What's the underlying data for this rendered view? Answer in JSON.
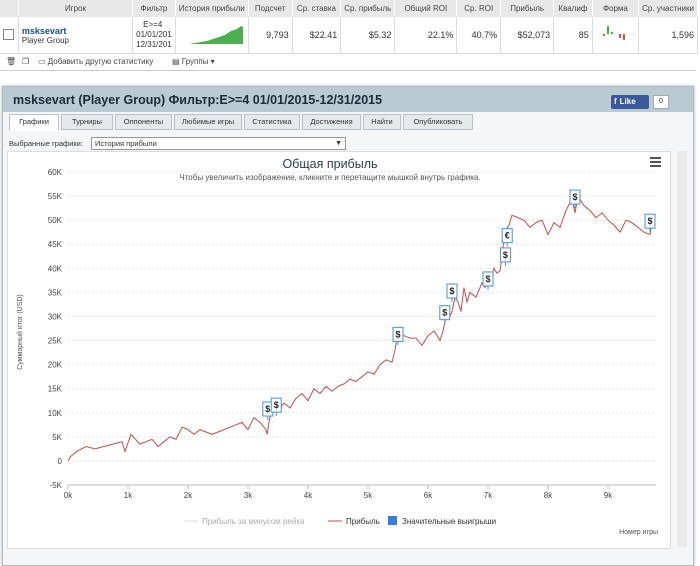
{
  "table": {
    "headers": [
      "Игрок",
      "Фильтр",
      "История прибыли",
      "Подсчет",
      "Ср. ставка",
      "Ср. прибыль",
      "Общий ROI",
      "Ср. ROI",
      "Прибыль",
      "Квалиф",
      "Форма",
      "Ср. участники"
    ],
    "row": {
      "name": "msksevart",
      "group": "Player Group",
      "filter_line1": "E>=4",
      "filter_line2": "01/01/201",
      "filter_line3": "12/31/201",
      "count": "9,793",
      "avg_stake": "$22.41",
      "avg_profit": "$5.32",
      "total_roi": "22.1%",
      "avg_roi": "40.7%",
      "profit": "$52,073",
      "qualif": "85",
      "avg_entrants": "1,596"
    }
  },
  "toolbar": {
    "add_stats": "Добавить другую статистику",
    "groups": "Группы"
  },
  "panel": {
    "title": "msksevart (Player Group) Фильтр:E>=4 01/01/2015-12/31/2015",
    "fb_like": "Like",
    "fb_count": "0",
    "tabs": [
      "Графики",
      "Турниры",
      "Оппоненты",
      "Любимые игры",
      "Статистика",
      "Достижения",
      "Найти",
      "Опубликовать"
    ],
    "select_label": "Выбранные графики:",
    "select_value": "История прибыли"
  },
  "chart_data": {
    "type": "line",
    "title": "Общая прибыль",
    "subtitle": "Чтобы увеличить изображение, кликните и перетащите мышкой внутрь графика.",
    "xlabel": "Номер игры",
    "ylabel": "Суммарный итог (USD)",
    "xlim": [
      0,
      9800
    ],
    "ylim": [
      -5000,
      60000
    ],
    "x_ticks": [
      "0k",
      "1k",
      "2k",
      "3k",
      "4k",
      "5k",
      "6k",
      "7k",
      "8k",
      "9k"
    ],
    "y_ticks": [
      "-5K",
      "0",
      "5K",
      "10K",
      "15K",
      "20K",
      "25K",
      "30K",
      "35K",
      "40K",
      "45K",
      "50K",
      "55K",
      "60K"
    ],
    "legend": [
      "Прибыль за минусом рейка",
      "Прибыль",
      "Значительные выигрыши"
    ],
    "legend_position": "bottom",
    "series_color": "#c0504d",
    "marker_color": "#4a90d9",
    "profit_series": {
      "x": [
        0,
        50,
        150,
        300,
        450,
        600,
        750,
        900,
        950,
        1050,
        1200,
        1400,
        1500,
        1600,
        1700,
        1800,
        1900,
        2000,
        2100,
        2200,
        2300,
        2400,
        2500,
        2600,
        2700,
        2800,
        2900,
        3000,
        3100,
        3200,
        3300,
        3320,
        3350,
        3400,
        3500,
        3600,
        3700,
        3800,
        3900,
        4000,
        4100,
        4200,
        4300,
        4400,
        4500,
        4600,
        4700,
        4800,
        4900,
        5000,
        5100,
        5200,
        5300,
        5400,
        5450,
        5500,
        5550,
        5600,
        5700,
        5800,
        5900,
        6000,
        6100,
        6200,
        6250,
        6300,
        6350,
        6400,
        6450,
        6500,
        6550,
        6600,
        6650,
        6700,
        6800,
        6900,
        6950,
        7000,
        7050,
        7100,
        7150,
        7200,
        7230,
        7250,
        7280,
        7300,
        7350,
        7400,
        7500,
        7600,
        7700,
        7800,
        7900,
        8000,
        8100,
        8200,
        8300,
        8400,
        8450,
        8500,
        8550,
        8600,
        8700,
        8800,
        8900,
        9000,
        9100,
        9200,
        9300,
        9400,
        9500,
        9600,
        9700,
        9750
      ],
      "y": [
        0,
        1000,
        2000,
        3000,
        2500,
        3000,
        3500,
        4000,
        2000,
        5500,
        3500,
        4500,
        3000,
        4000,
        5000,
        4500,
        7000,
        6500,
        5500,
        6500,
        6000,
        5500,
        6000,
        6500,
        7000,
        7500,
        8000,
        6500,
        9000,
        8000,
        6500,
        5500,
        8000,
        11000,
        10500,
        12000,
        11000,
        13000,
        14000,
        12500,
        15000,
        14000,
        15500,
        14500,
        15500,
        16000,
        17000,
        16500,
        17500,
        18500,
        18000,
        20000,
        21000,
        20500,
        23000,
        27000,
        26000,
        26000,
        25500,
        25500,
        24000,
        26000,
        27000,
        25000,
        27000,
        30000,
        29500,
        31000,
        34000,
        33000,
        31000,
        36000,
        33000,
        35000,
        34000,
        37000,
        36000,
        38000,
        37500,
        40000,
        39000,
        39500,
        42000,
        44500,
        46000,
        48000,
        49000,
        51000,
        50500,
        50000,
        48500,
        49500,
        50000,
        47000,
        49500,
        48500,
        52000,
        54500,
        51500,
        55000,
        54000,
        53000,
        52000,
        50500,
        51500,
        50000,
        49000,
        47500,
        50000,
        49500,
        48500,
        47500,
        47000,
        51000
      ]
    },
    "big_wins": [
      {
        "x": 3330,
        "y": 8500,
        "label": "$"
      },
      {
        "x": 3470,
        "y": 9300,
        "label": "$"
      },
      {
        "x": 5500,
        "y": 24000,
        "label": "$"
      },
      {
        "x": 6280,
        "y": 28500,
        "label": "$"
      },
      {
        "x": 6400,
        "y": 33000,
        "label": "$"
      },
      {
        "x": 7000,
        "y": 35500,
        "label": "$"
      },
      {
        "x": 7290,
        "y": 40500,
        "label": "$"
      },
      {
        "x": 7320,
        "y": 44500,
        "label": "€"
      },
      {
        "x": 8450,
        "y": 52500,
        "label": "$"
      },
      {
        "x": 9700,
        "y": 47500,
        "label": "$"
      }
    ]
  }
}
